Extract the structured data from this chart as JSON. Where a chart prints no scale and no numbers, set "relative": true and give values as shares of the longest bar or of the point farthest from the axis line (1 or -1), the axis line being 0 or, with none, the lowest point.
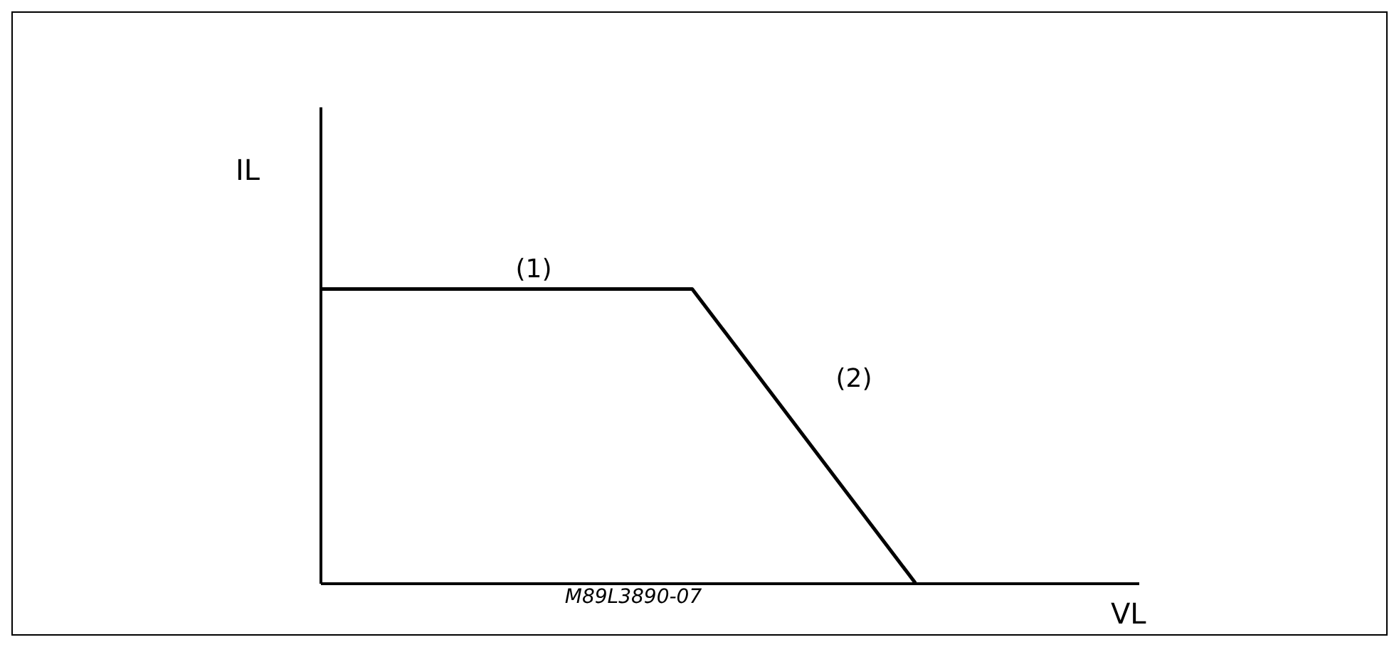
{
  "chart_data": {
    "type": "line",
    "relative": true,
    "xlabel": "VL",
    "ylabel": "IL",
    "categories": [
      null,
      null,
      null,
      null,
      null,
      null,
      null,
      null,
      null,
      null,
      null,
      null
    ],
    "values": [
      1,
      1,
      1,
      1,
      1,
      1,
      0.667,
      0.333,
      0,
      null,
      null,
      null
    ],
    "color": "#000000",
    "marker": "none",
    "line_style": "solid",
    "grid": false,
    "annotations": [
      "(1)",
      "(2)",
      "M89L3890-07"
    ]
  }
}
